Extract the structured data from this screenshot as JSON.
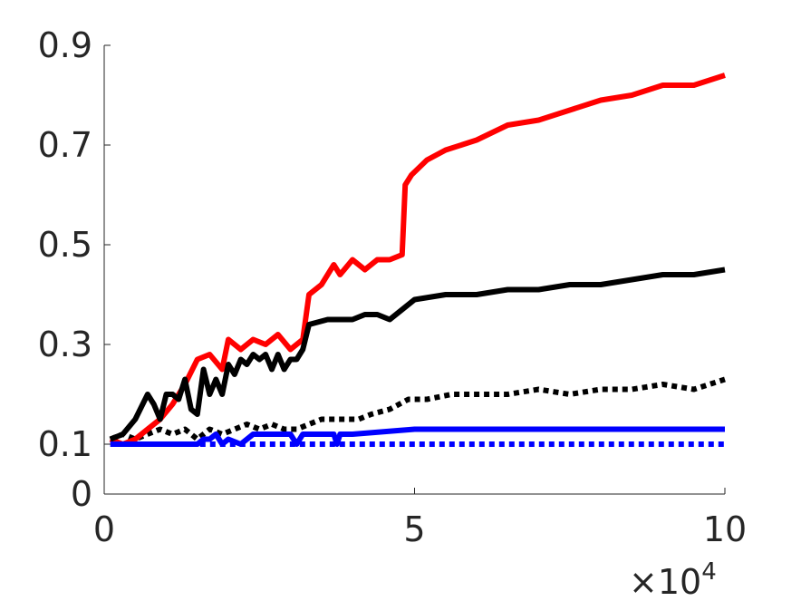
{
  "chart_data": {
    "type": "line",
    "title": "",
    "xlabel": "",
    "ylabel": "",
    "x_exponent_label": {
      "base": "×10",
      "exponent": "4"
    },
    "xlim": [
      0,
      10
    ],
    "ylim": [
      0,
      0.9
    ],
    "xticks": [
      0,
      5,
      10
    ],
    "xtick_labels": [
      "0",
      "5",
      "10"
    ],
    "yticks": [
      0,
      0.1,
      0.3,
      0.5,
      0.7,
      0.9
    ],
    "ytick_labels": [
      "0",
      "0.1",
      "0.3",
      "0.5",
      "0.7",
      "0.9"
    ],
    "grid": false,
    "legend": "none",
    "series": [
      {
        "color": "#ff0000",
        "style": "solid",
        "x": [
          0.1,
          0.3,
          0.5,
          0.7,
          0.9,
          1.1,
          1.3,
          1.5,
          1.7,
          1.9,
          2.0,
          2.2,
          2.4,
          2.6,
          2.8,
          3.0,
          3.2,
          3.3,
          3.5,
          3.7,
          3.8,
          4.0,
          4.2,
          4.4,
          4.6,
          4.8,
          4.85,
          4.95,
          5.2,
          5.5,
          6.0,
          6.5,
          7.0,
          7.5,
          8.0,
          8.5,
          9.0,
          9.5,
          10.0
        ],
        "y": [
          0.11,
          0.1,
          0.11,
          0.13,
          0.15,
          0.18,
          0.22,
          0.27,
          0.28,
          0.25,
          0.31,
          0.29,
          0.31,
          0.3,
          0.32,
          0.29,
          0.31,
          0.4,
          0.42,
          0.46,
          0.44,
          0.47,
          0.45,
          0.47,
          0.47,
          0.48,
          0.62,
          0.64,
          0.67,
          0.69,
          0.71,
          0.74,
          0.75,
          0.77,
          0.79,
          0.8,
          0.82,
          0.82,
          0.84
        ]
      },
      {
        "color": "#000000",
        "style": "solid",
        "x": [
          0.1,
          0.3,
          0.5,
          0.7,
          0.8,
          0.9,
          1.0,
          1.1,
          1.2,
          1.3,
          1.4,
          1.5,
          1.6,
          1.7,
          1.8,
          1.9,
          2.0,
          2.1,
          2.2,
          2.3,
          2.4,
          2.5,
          2.6,
          2.7,
          2.8,
          2.9,
          3.0,
          3.1,
          3.2,
          3.3,
          3.6,
          3.8,
          4.0,
          4.2,
          4.4,
          4.6,
          5.0,
          5.5,
          6.0,
          6.5,
          7.0,
          7.5,
          8.0,
          8.5,
          9.0,
          9.5,
          10.0
        ],
        "y": [
          0.11,
          0.12,
          0.15,
          0.2,
          0.18,
          0.15,
          0.2,
          0.2,
          0.19,
          0.23,
          0.17,
          0.16,
          0.25,
          0.2,
          0.23,
          0.2,
          0.26,
          0.24,
          0.27,
          0.26,
          0.28,
          0.27,
          0.28,
          0.25,
          0.28,
          0.25,
          0.27,
          0.27,
          0.29,
          0.34,
          0.35,
          0.35,
          0.35,
          0.36,
          0.36,
          0.35,
          0.39,
          0.4,
          0.4,
          0.41,
          0.41,
          0.42,
          0.42,
          0.43,
          0.44,
          0.44,
          0.45
        ]
      },
      {
        "color": "#000000",
        "style": "dotted",
        "x": [
          0.1,
          0.3,
          0.5,
          0.7,
          0.9,
          1.1,
          1.3,
          1.5,
          1.7,
          1.9,
          2.1,
          2.3,
          2.5,
          2.7,
          2.9,
          3.1,
          3.3,
          3.5,
          3.8,
          4.1,
          4.3,
          4.6,
          4.9,
          5.2,
          5.6,
          6.0,
          6.5,
          7.0,
          7.5,
          8.0,
          8.5,
          9.0,
          9.5,
          10.0
        ],
        "y": [
          0.11,
          0.12,
          0.11,
          0.12,
          0.13,
          0.12,
          0.13,
          0.11,
          0.13,
          0.12,
          0.13,
          0.14,
          0.13,
          0.14,
          0.13,
          0.13,
          0.14,
          0.15,
          0.15,
          0.15,
          0.16,
          0.17,
          0.19,
          0.19,
          0.2,
          0.2,
          0.2,
          0.21,
          0.2,
          0.21,
          0.21,
          0.22,
          0.21,
          0.23
        ]
      },
      {
        "color": "#0000ff",
        "style": "solid",
        "x": [
          0.1,
          0.5,
          1.0,
          1.5,
          1.6,
          1.7,
          1.8,
          1.9,
          2.0,
          2.2,
          2.4,
          2.6,
          2.8,
          3.0,
          3.1,
          3.2,
          3.3,
          3.5,
          3.7,
          3.75,
          3.8,
          4.0,
          5.0,
          6.0,
          7.0,
          8.0,
          9.0,
          10.0
        ],
        "y": [
          0.1,
          0.1,
          0.1,
          0.1,
          0.11,
          0.11,
          0.12,
          0.1,
          0.11,
          0.1,
          0.12,
          0.12,
          0.12,
          0.12,
          0.1,
          0.12,
          0.12,
          0.12,
          0.12,
          0.1,
          0.12,
          0.12,
          0.13,
          0.13,
          0.13,
          0.13,
          0.13,
          0.13
        ]
      },
      {
        "color": "#0000ff",
        "style": "dotted",
        "x": [
          0.1,
          10.0
        ],
        "y": [
          0.1,
          0.1
        ]
      }
    ]
  }
}
